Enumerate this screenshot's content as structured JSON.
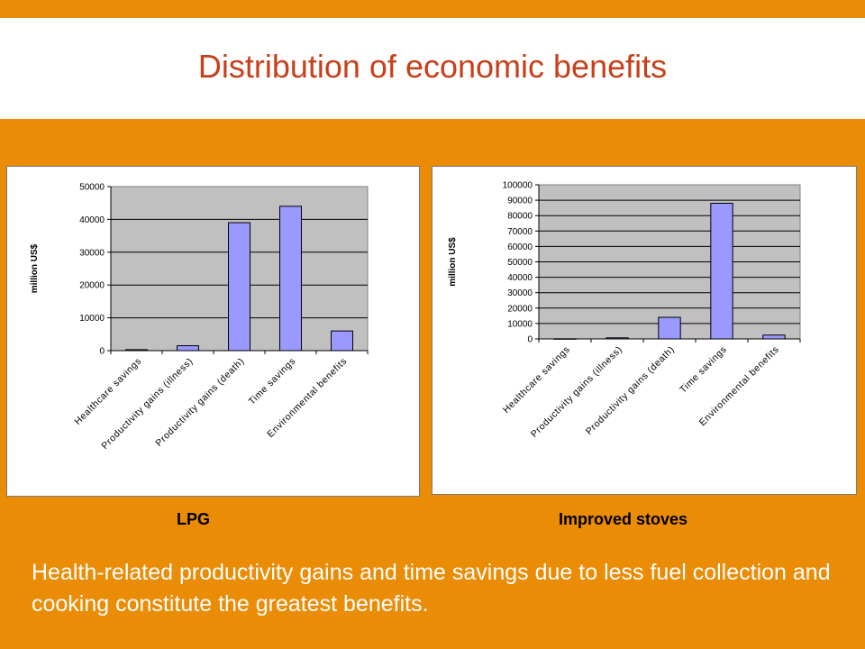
{
  "slide": {
    "title": "Distribution of economic benefits",
    "summary": "Health-related productivity gains and time savings due to less fuel collection and cooking constitute the greatest benefits.",
    "colors": {
      "background": "#EA8C06",
      "title": "#C8401A",
      "bar_fill": "#9999FF",
      "plot_area": "#C0C0C0"
    }
  },
  "chart_data": [
    {
      "type": "bar",
      "caption": "LPG",
      "ylabel": "million US$",
      "categories": [
        "Healthcare savings",
        "Productivity gains (illness)",
        "Productivity gains (death)",
        "Time savings",
        "Environmental benefits"
      ],
      "values": [
        300,
        1500,
        39000,
        44000,
        6000
      ],
      "ylim": [
        0,
        50000
      ],
      "yticks": [
        "0",
        "10000",
        "20000",
        "30000",
        "40000",
        "50000"
      ],
      "grid": true,
      "legend": "none"
    },
    {
      "type": "bar",
      "caption": "Improved stoves",
      "ylabel": "million US$",
      "categories": [
        "Healthcare savings",
        "Productivity gains (illness)",
        "Productivity gains (death)",
        "Time savings",
        "Environmental benefits"
      ],
      "values": [
        100,
        700,
        14000,
        88000,
        2500
      ],
      "ylim": [
        0,
        100000
      ],
      "yticks": [
        "0",
        "10000",
        "20000",
        "30000",
        "40000",
        "50000",
        "60000",
        "70000",
        "80000",
        "90000",
        "100000"
      ],
      "grid": true,
      "legend": "none"
    }
  ]
}
